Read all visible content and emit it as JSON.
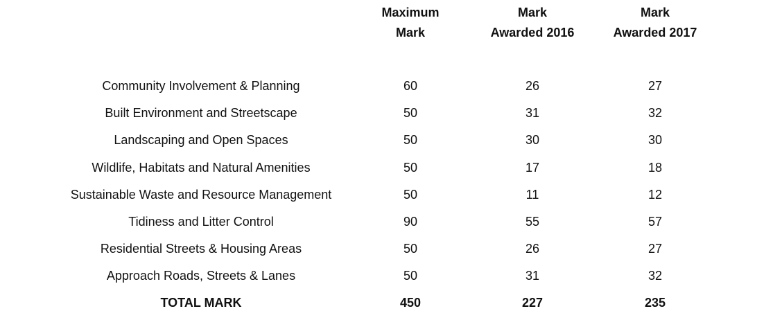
{
  "table": {
    "headers": {
      "maximum_mark": "Maximum\nMark",
      "awarded_2016": "Mark\nAwarded 2016",
      "awarded_2017": "Mark\nAwarded 2017"
    },
    "rows": [
      {
        "category": "Community Involvement & Planning",
        "maximum": "60",
        "awarded_2016": "26",
        "awarded_2017": "27"
      },
      {
        "category": "Built Environment and Streetscape",
        "maximum": "50",
        "awarded_2016": "31",
        "awarded_2017": "32"
      },
      {
        "category": "Landscaping and Open Spaces",
        "maximum": "50",
        "awarded_2016": "30",
        "awarded_2017": "30"
      },
      {
        "category": "Wildlife, Habitats and Natural Amenities",
        "maximum": "50",
        "awarded_2016": "17",
        "awarded_2017": "18"
      },
      {
        "category": "Sustainable Waste and Resource Management",
        "maximum": "50",
        "awarded_2016": "11",
        "awarded_2017": "12"
      },
      {
        "category": "Tidiness and Litter Control",
        "maximum": "90",
        "awarded_2016": "55",
        "awarded_2017": "57"
      },
      {
        "category": "Residential Streets & Housing Areas",
        "maximum": "50",
        "awarded_2016": "26",
        "awarded_2017": "27"
      },
      {
        "category": "Approach Roads, Streets & Lanes",
        "maximum": "50",
        "awarded_2016": "31",
        "awarded_2017": "32"
      }
    ],
    "total": {
      "label": "TOTAL MARK",
      "maximum": "450",
      "awarded_2016": "227",
      "awarded_2017": "235"
    }
  }
}
